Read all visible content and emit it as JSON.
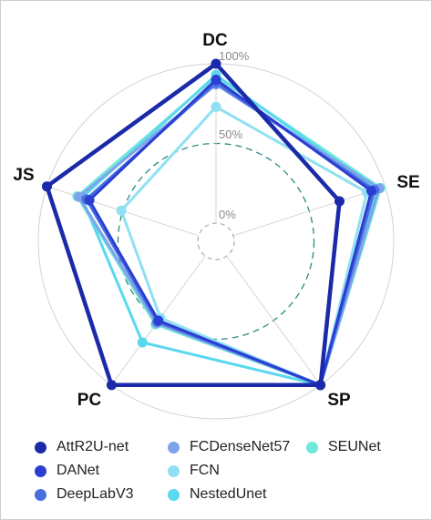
{
  "chart_data": {
    "type": "radar",
    "axes": [
      "DC",
      "SE",
      "SP",
      "PC",
      "JS"
    ],
    "ticks": [
      "100%",
      "50%",
      "0%"
    ],
    "rmax": 100,
    "series": [
      {
        "name": "AttR2U-net",
        "color": "#1a2aa8",
        "values": [
          100,
          70,
          100,
          100,
          100
        ]
      },
      {
        "name": "DANet",
        "color": "#2a3fd2",
        "values": [
          90,
          91,
          100,
          50,
          72
        ]
      },
      {
        "name": "DeepLabV3",
        "color": "#4a6ee0",
        "values": [
          88,
          93,
          100,
          51,
          74
        ]
      },
      {
        "name": "FCDenseNet57",
        "color": "#7fa3ea",
        "values": [
          87,
          96,
          100,
          52,
          79
        ]
      },
      {
        "name": "FCN",
        "color": "#8ee0f2",
        "values": [
          73,
          88,
          100,
          48,
          51
        ]
      },
      {
        "name": "NestedUnet",
        "color": "#5ad8ee",
        "values": [
          93,
          94,
          100,
          67,
          77
        ]
      },
      {
        "name": "SEUNet",
        "color": "#6ee8dc",
        "values": [
          92,
          97,
          100,
          53,
          80
        ]
      }
    ]
  }
}
